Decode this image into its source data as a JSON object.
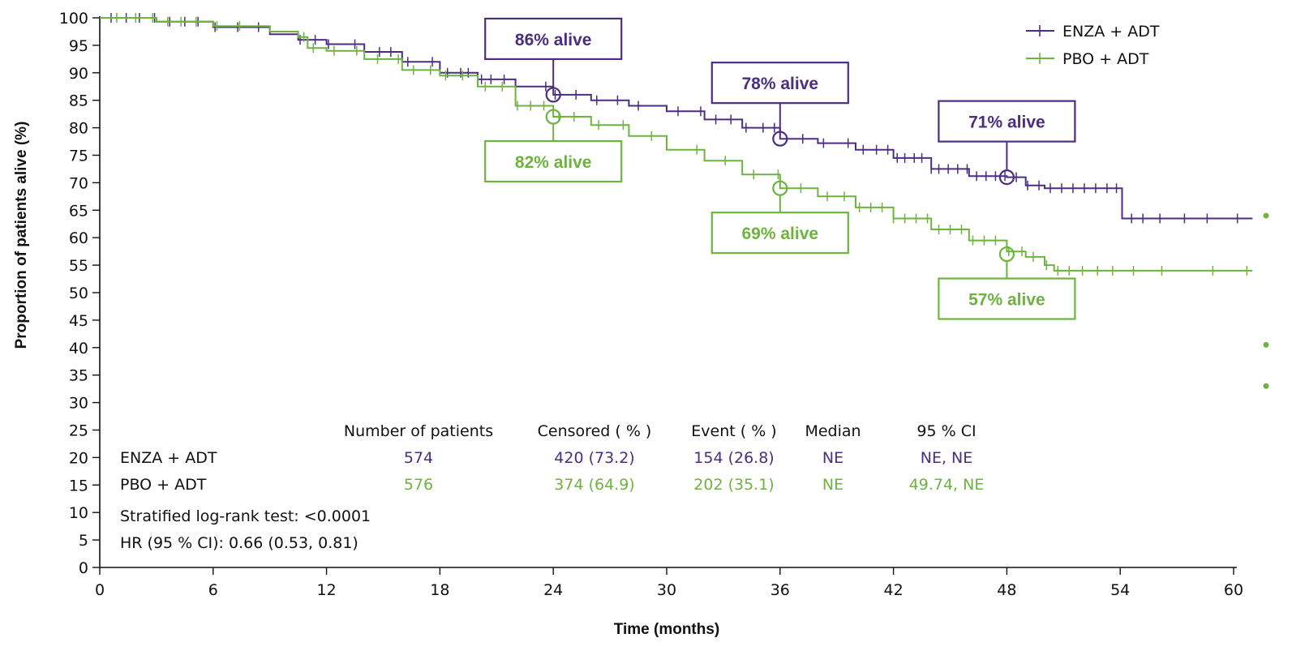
{
  "chart_data": {
    "type": "line",
    "title": "",
    "xlabel": "Time (months)",
    "ylabel": "Proportion of patients alive (%)",
    "xlim": [
      0,
      60
    ],
    "ylim": [
      0,
      100
    ],
    "xticks": [
      0,
      6,
      12,
      18,
      24,
      30,
      36,
      42,
      48,
      54,
      60
    ],
    "yticks": [
      0,
      5,
      10,
      15,
      20,
      25,
      30,
      35,
      40,
      45,
      50,
      55,
      60,
      65,
      70,
      75,
      80,
      85,
      90,
      95,
      100
    ],
    "legend_position": "top-right",
    "grid": false,
    "series": [
      {
        "name": "ENZA + ADT",
        "color": "#4b2d83",
        "x": [
          0,
          3,
          6,
          9,
          10.5,
          12,
          14,
          16,
          18,
          20,
          22,
          24,
          26,
          28,
          30,
          32,
          34,
          36,
          38,
          40,
          42,
          44,
          46,
          48,
          49,
          50,
          52,
          54,
          54.1,
          56,
          58,
          61
        ],
        "y": [
          100,
          99.3,
          98.3,
          97,
          96,
          95.2,
          93.8,
          92,
          90,
          88.8,
          87.5,
          86,
          85,
          84,
          83,
          81.5,
          80,
          78,
          77.2,
          76,
          74.5,
          72.5,
          71.2,
          71,
          69.5,
          69,
          69,
          69,
          63.5,
          63.5,
          63.5,
          63.5
        ],
        "censor_x": [
          0.6,
          1.4,
          2.1,
          2.9,
          3.7,
          4.5,
          5.2,
          6.1,
          7.3,
          8.4,
          10.6,
          11.4,
          12.1,
          13.5,
          14.8,
          15.4,
          16.3,
          17.6,
          18.4,
          19.1,
          19.5,
          20.2,
          20.7,
          21.4,
          23.6,
          24.1,
          25.2,
          26.3,
          27.4,
          28.5,
          30.6,
          31.8,
          32.6,
          33.4,
          34.2,
          35.1,
          35.7,
          37.2,
          38.3,
          39.6,
          40.4,
          41.1,
          41.7,
          42.2,
          42.6,
          43.1,
          43.5,
          44,
          44.4,
          44.9,
          45.4,
          45.9,
          46.4,
          46.9,
          47.4,
          47.9,
          48.5,
          49.1,
          49.7,
          50.3,
          50.9,
          51.5,
          52.1,
          52.7,
          53.3,
          53.8,
          54.6,
          55.2,
          56.1,
          57.4,
          58.6,
          60.2
        ]
      },
      {
        "name": "PBO + ADT",
        "color": "#6db33f",
        "x": [
          0,
          3,
          6,
          9,
          10.5,
          11,
          12,
          14,
          16,
          18,
          20,
          22,
          24,
          26,
          28,
          30,
          32,
          34,
          36,
          38,
          40,
          42,
          44,
          46,
          48,
          49,
          50,
          50.5,
          52,
          56,
          61
        ],
        "y": [
          100,
          99.3,
          98.5,
          97.5,
          96.5,
          94.5,
          94,
          92.5,
          90.5,
          89.5,
          87.5,
          84,
          82,
          80.5,
          78.5,
          76,
          74,
          71.5,
          69,
          67.5,
          65.5,
          63.5,
          61.5,
          59.5,
          57.5,
          56.5,
          55,
          54,
          54,
          54,
          54
        ],
        "censor_x": [
          0.9,
          1.9,
          2.8,
          3.6,
          4.3,
          5.1,
          6.2,
          7.4,
          10.8,
          11.3,
          12.4,
          13.6,
          14.7,
          15.8,
          16.6,
          17.5,
          18.3,
          19.2,
          20.4,
          21.3,
          22.1,
          22.8,
          23.5,
          24.3,
          25.1,
          26.4,
          27.7,
          29.2,
          31.6,
          33.1,
          34.6,
          35.9,
          37.1,
          38.5,
          39.4,
          40.2,
          40.8,
          41.4,
          42,
          42.6,
          43.2,
          43.8,
          44.4,
          45,
          45.6,
          46.2,
          46.8,
          47.4,
          48.1,
          48.8,
          49.4,
          50.1,
          50.7,
          51.3,
          52,
          52.8,
          53.6,
          54.7,
          56.2,
          58.9,
          60.7
        ]
      }
    ],
    "callouts": [
      {
        "text": "86% alive",
        "series": 0,
        "x": 24,
        "y": 86,
        "placement": "above"
      },
      {
        "text": "78% alive",
        "series": 0,
        "x": 36,
        "y": 78,
        "placement": "above"
      },
      {
        "text": "71% alive",
        "series": 0,
        "x": 48,
        "y": 71,
        "placement": "above"
      },
      {
        "text": "82% alive",
        "series": 1,
        "x": 24,
        "y": 82,
        "placement": "below"
      },
      {
        "text": "69% alive",
        "series": 1,
        "x": 36,
        "y": 69,
        "placement": "below"
      },
      {
        "text": "57% alive",
        "series": 1,
        "x": 48,
        "y": 57,
        "placement": "below"
      }
    ],
    "right_margin_markers": [
      64,
      40.5,
      33
    ]
  },
  "table": {
    "headers": [
      "Number of patients",
      "Censored ( % )",
      "Event ( % )",
      "Median",
      "95 % CI"
    ],
    "rows": [
      {
        "label": "ENZA + ADT",
        "values": [
          "574",
          "420 (73.2)",
          "154 (26.8)",
          "NE",
          "NE, NE"
        ]
      },
      {
        "label": "PBO + ADT",
        "values": [
          "576",
          "374 (64.9)",
          "202 (35.1)",
          "NE",
          "49.74, NE"
        ]
      }
    ],
    "footnotes": [
      "Stratified log-rank test: <0.0001",
      "HR (95 % CI): 0.66 (0.53, 0.81)"
    ]
  }
}
